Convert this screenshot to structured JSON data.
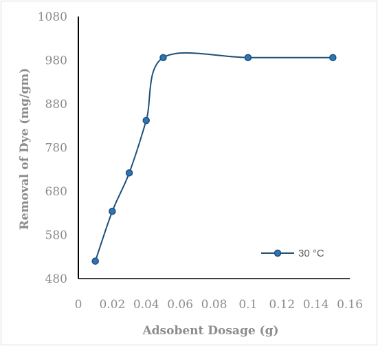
{
  "chart_data": {
    "type": "line",
    "title": "",
    "xlabel": "Adsobent Dosage (g)",
    "ylabel": "Removal of Dye (mg/gm)",
    "xlim": [
      0,
      0.16
    ],
    "ylim": [
      480,
      1080
    ],
    "x_ticks": [
      "0",
      "0.02",
      "0.04",
      "0.06",
      "0.08",
      "0.1",
      "0.12",
      "0.14",
      "0.16"
    ],
    "y_ticks": [
      "480",
      "580",
      "680",
      "780",
      "880",
      "980",
      "1080"
    ],
    "grid": false,
    "smooth": true,
    "legend_position": "bottom-right",
    "series": [
      {
        "name": "30 °C",
        "color": "#1f4e79",
        "marker_fill": "#2e75b6",
        "x": [
          0.01,
          0.02,
          0.03,
          0.04,
          0.05,
          0.1,
          0.15
        ],
        "y": [
          520,
          634,
          722,
          842,
          986,
          986,
          986
        ]
      }
    ]
  }
}
